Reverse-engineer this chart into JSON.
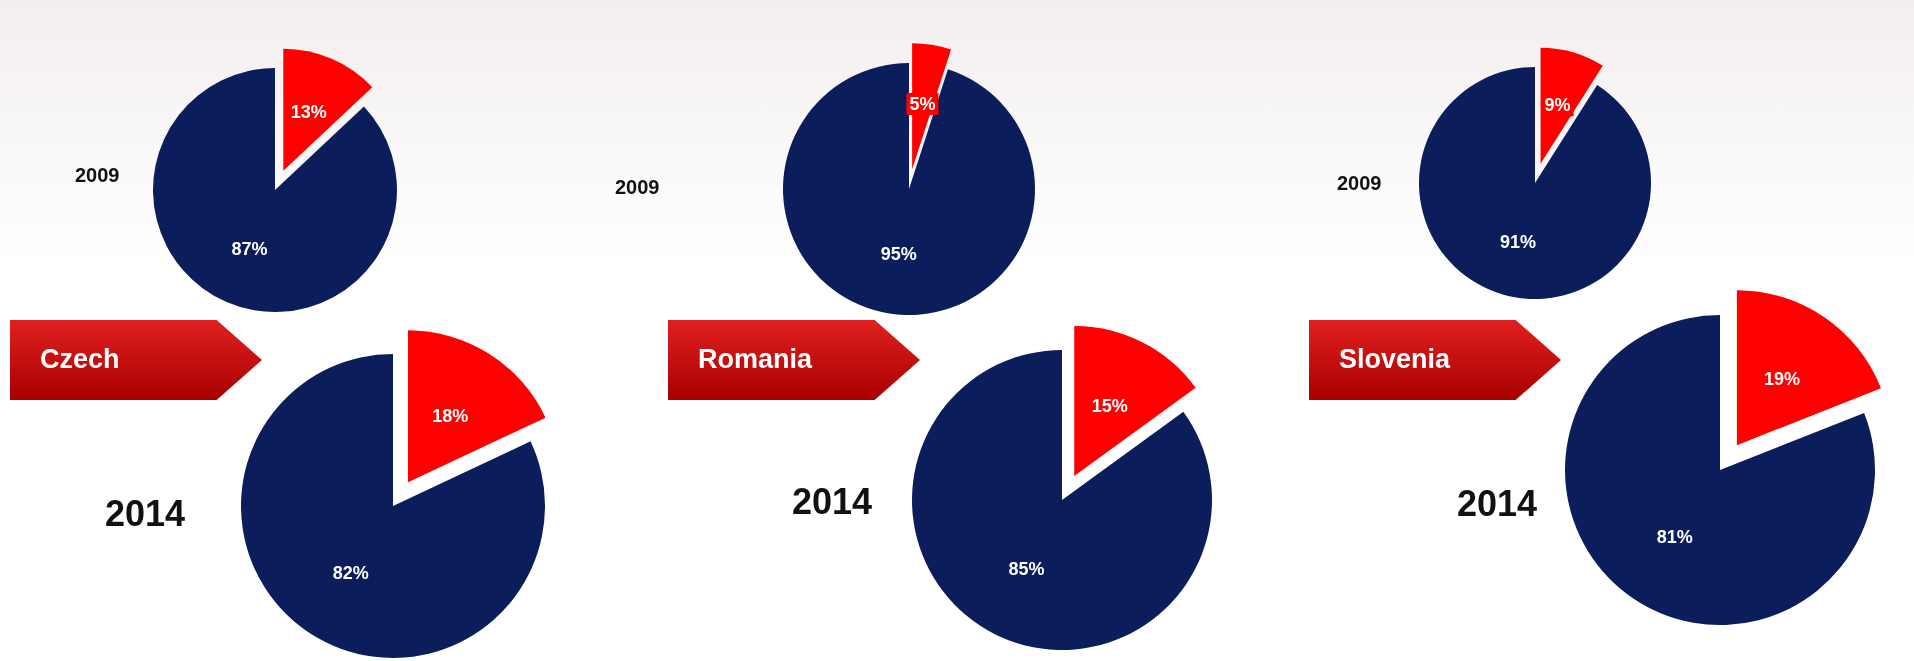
{
  "chart_data": [
    {
      "type": "pie",
      "title": "2009",
      "categories": [
        null,
        null
      ],
      "values": [
        13,
        87
      ],
      "colors": [
        "#ff0000",
        "#0c1d5b"
      ],
      "value_labels": [
        "13%",
        "87%"
      ]
    },
    {
      "type": "pie",
      "title": "2014",
      "categories": [
        null,
        null
      ],
      "values": [
        18,
        82
      ],
      "colors": [
        "#ff0000",
        "#0c1d5b"
      ],
      "value_labels": [
        "18%",
        "82%"
      ],
      "annotations": [
        "Czech"
      ]
    },
    {
      "type": "pie",
      "title": "2009",
      "categories": [
        null,
        null
      ],
      "values": [
        5,
        95
      ],
      "colors": [
        "#ff0000",
        "#0c1d5b"
      ],
      "value_labels": [
        "5%",
        "95%"
      ]
    },
    {
      "type": "pie",
      "title": "2014",
      "categories": [
        null,
        null
      ],
      "values": [
        15,
        85
      ],
      "colors": [
        "#ff0000",
        "#0c1d5b"
      ],
      "value_labels": [
        "15%",
        "85%"
      ],
      "annotations": [
        "Romania"
      ]
    },
    {
      "type": "pie",
      "title": "2009",
      "categories": [
        null,
        null
      ],
      "values": [
        9,
        91
      ],
      "colors": [
        "#ff0000",
        "#0c1d5b"
      ],
      "value_labels": [
        "9%",
        "91%"
      ]
    },
    {
      "type": "pie",
      "title": "2014",
      "categories": [
        null,
        null
      ],
      "values": [
        19,
        81
      ],
      "colors": [
        "#ff0000",
        "#0c1d5b"
      ],
      "value_labels": [
        "19%",
        "81%"
      ],
      "annotations": [
        "Slovenia"
      ]
    }
  ]
}
